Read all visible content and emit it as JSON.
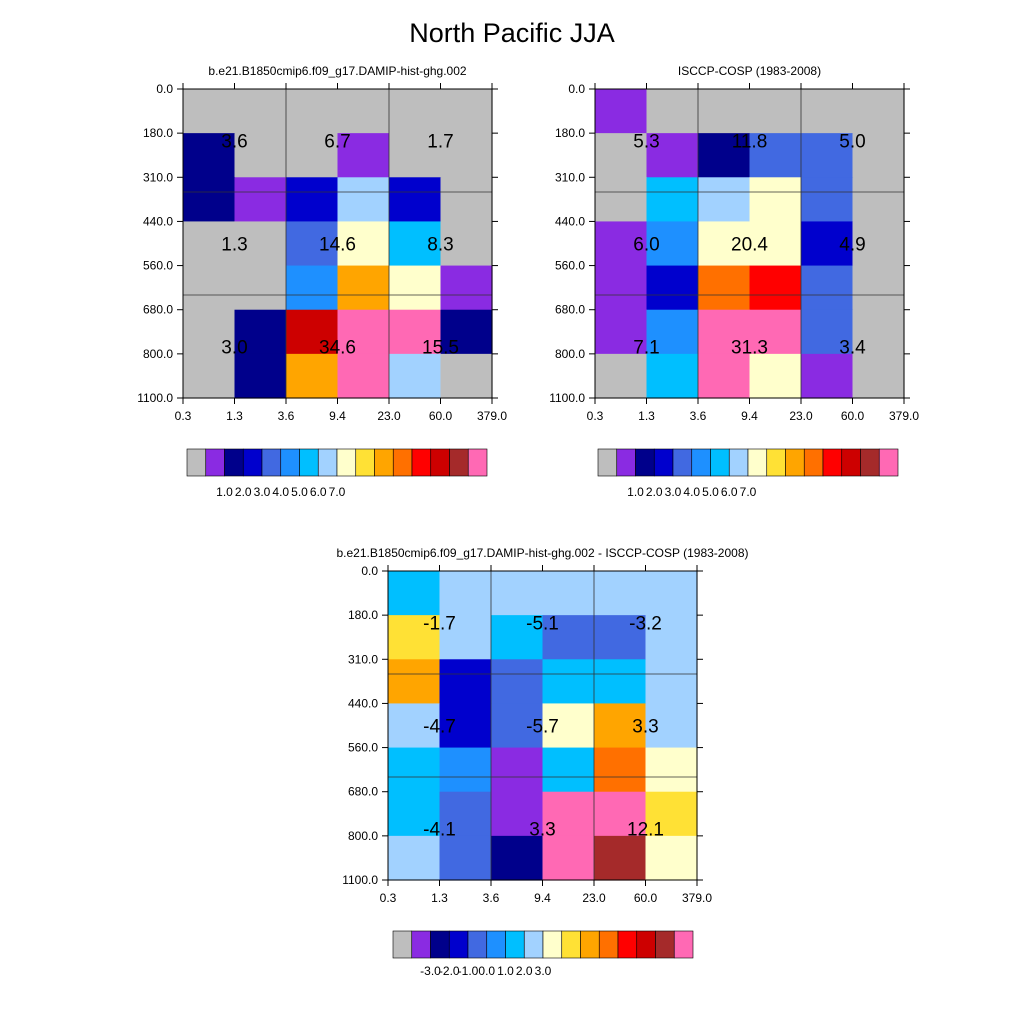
{
  "title": "North Pacific JJA",
  "colors": {
    "palette": [
      "#bebebe",
      "#8a2be2",
      "#00008b",
      "#0000cd",
      "#4169e1",
      "#1e90ff",
      "#00bfff",
      "#a2d2ff",
      "#ffffcc",
      "#ffe135",
      "#ffa500",
      "#ff7000",
      "#ff0000",
      "#cd0000",
      "#a52a2a",
      "#ff69b4"
    ]
  },
  "chart_data": [
    {
      "id": "model",
      "type": "heatmap",
      "title": "b.e21.B1850cmip6.f09_g17.DAMIP-hist-ghg.002",
      "x_tick_labels": [
        "0.3",
        "1.3",
        "3.6",
        "9.4",
        "23.0",
        "60.0",
        "379.0"
      ],
      "y_tick_labels": [
        "0.0",
        "180.0",
        "310.0",
        "440.0",
        "560.0",
        "680.0",
        "800.0",
        "1100.0"
      ],
      "cells": [
        [
          0,
          0,
          0,
          0,
          0,
          0
        ],
        [
          2,
          0,
          0,
          1,
          0,
          0
        ],
        [
          2,
          1,
          3,
          7,
          3,
          0
        ],
        [
          0,
          0,
          4,
          8,
          6,
          0
        ],
        [
          0,
          0,
          5,
          10,
          8,
          1
        ],
        [
          0,
          2,
          13,
          15,
          15,
          2
        ],
        [
          0,
          2,
          10,
          15,
          7,
          0
        ]
      ],
      "box_labels": [
        {
          "text": "3.6",
          "col": 0,
          "row": 0
        },
        {
          "text": "6.7",
          "col": 1,
          "row": 0
        },
        {
          "text": "1.7",
          "col": 2,
          "row": 0
        },
        {
          "text": "1.3",
          "col": 0,
          "row": 1
        },
        {
          "text": "14.6",
          "col": 1,
          "row": 1
        },
        {
          "text": "8.3",
          "col": 2,
          "row": 1
        },
        {
          "text": "3.0",
          "col": 0,
          "row": 2
        },
        {
          "text": "34.6",
          "col": 1,
          "row": 2
        },
        {
          "text": "15.5",
          "col": 2,
          "row": 2
        }
      ],
      "colorbar_labels": [
        "1.0",
        "2.0",
        "3.0",
        "4.0",
        "5.0",
        "6.0",
        "7.0"
      ]
    },
    {
      "id": "obs",
      "type": "heatmap",
      "title": "ISCCP-COSP (1983-2008)",
      "x_tick_labels": [
        "0.3",
        "1.3",
        "3.6",
        "9.4",
        "23.0",
        "60.0",
        "379.0"
      ],
      "y_tick_labels": [
        "0.0",
        "180.0",
        "310.0",
        "440.0",
        "560.0",
        "680.0",
        "800.0",
        "1100.0"
      ],
      "cells": [
        [
          1,
          0,
          0,
          0,
          0,
          0
        ],
        [
          0,
          1,
          2,
          4,
          4,
          0
        ],
        [
          0,
          6,
          7,
          8,
          4,
          0
        ],
        [
          1,
          5,
          8,
          8,
          3,
          0
        ],
        [
          1,
          3,
          11,
          12,
          4,
          0
        ],
        [
          1,
          5,
          15,
          15,
          4,
          0
        ],
        [
          0,
          6,
          15,
          8,
          1,
          0
        ]
      ],
      "box_labels": [
        {
          "text": "5.3",
          "col": 0,
          "row": 0
        },
        {
          "text": "11.8",
          "col": 1,
          "row": 0
        },
        {
          "text": "5.0",
          "col": 2,
          "row": 0
        },
        {
          "text": "6.0",
          "col": 0,
          "row": 1
        },
        {
          "text": "20.4",
          "col": 1,
          "row": 1
        },
        {
          "text": "4.9",
          "col": 2,
          "row": 1
        },
        {
          "text": "7.1",
          "col": 0,
          "row": 2
        },
        {
          "text": "31.3",
          "col": 1,
          "row": 2
        },
        {
          "text": "3.4",
          "col": 2,
          "row": 2
        }
      ],
      "colorbar_labels": [
        "1.0",
        "2.0",
        "3.0",
        "4.0",
        "5.0",
        "6.0",
        "7.0"
      ]
    },
    {
      "id": "diff",
      "type": "heatmap",
      "title": "b.e21.B1850cmip6.f09_g17.DAMIP-hist-ghg.002 - ISCCP-COSP (1983-2008)",
      "x_tick_labels": [
        "0.3",
        "1.3",
        "3.6",
        "9.4",
        "23.0",
        "60.0",
        "379.0"
      ],
      "y_tick_labels": [
        "0.0",
        "180.0",
        "310.0",
        "440.0",
        "560.0",
        "680.0",
        "800.0",
        "1100.0"
      ],
      "cells": [
        [
          6,
          7,
          7,
          7,
          7,
          7
        ],
        [
          9,
          7,
          6,
          4,
          4,
          7
        ],
        [
          10,
          3,
          4,
          6,
          6,
          7
        ],
        [
          7,
          3,
          4,
          8,
          10,
          7
        ],
        [
          6,
          5,
          1,
          6,
          11,
          8
        ],
        [
          6,
          4,
          1,
          15,
          15,
          9
        ],
        [
          7,
          4,
          2,
          15,
          14,
          8
        ]
      ],
      "box_labels": [
        {
          "text": "-1.7",
          "col": 0,
          "row": 0
        },
        {
          "text": "-5.1",
          "col": 1,
          "row": 0
        },
        {
          "text": "-3.2",
          "col": 2,
          "row": 0
        },
        {
          "text": "-4.7",
          "col": 0,
          "row": 1
        },
        {
          "text": "-5.7",
          "col": 1,
          "row": 1
        },
        {
          "text": "3.3",
          "col": 2,
          "row": 1
        },
        {
          "text": "-4.1",
          "col": 0,
          "row": 2
        },
        {
          "text": "3.3",
          "col": 1,
          "row": 2
        },
        {
          "text": "12.1",
          "col": 2,
          "row": 2
        }
      ],
      "colorbar_labels": [
        "-3.0",
        "-2.0",
        "-1.0",
        "0.0",
        "1.0",
        "2.0",
        "3.0"
      ]
    }
  ]
}
